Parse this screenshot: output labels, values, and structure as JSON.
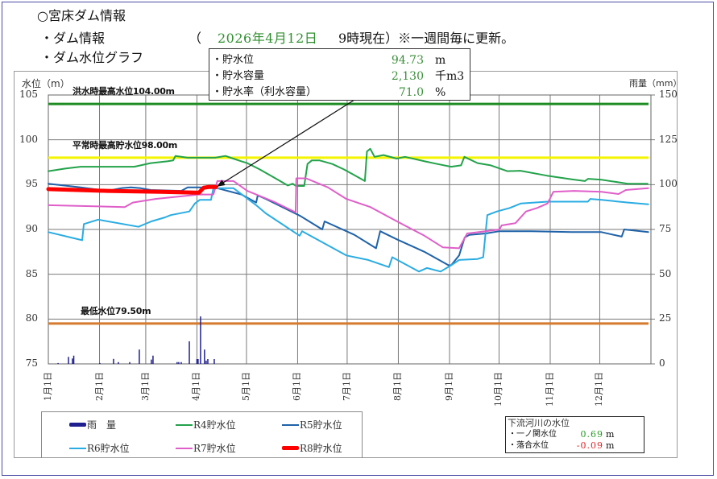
{
  "page": {
    "title": "○宮床ダム情報",
    "section_dam_info": "・ダム情報",
    "paren_open": "（",
    "date": "2026年4月12日",
    "time_note": "9時現在）※一週間毎に更新。",
    "section_graph": "・ダム水位グラフ"
  },
  "info_box": {
    "rows": [
      {
        "label": "・貯水位",
        "value": "94.73",
        "unit": "m"
      },
      {
        "label": "・貯水容量",
        "value": "2,130",
        "unit": "千m3"
      },
      {
        "label": "・貯水率（利水容量）",
        "value": "71.0",
        "unit": "%"
      }
    ]
  },
  "river": {
    "title": "下流河川の水位",
    "rows": [
      {
        "label": "・一ノ関水位",
        "value": "0.69",
        "unit": "m",
        "color": "#239a23"
      },
      {
        "label": "・落合水位",
        "value": "-0.09",
        "unit": "m",
        "color": "#e02424"
      }
    ]
  },
  "chart_data": {
    "type": "line",
    "title": "ダム水位グラフ",
    "xlabel": "",
    "ylabel": "水位（m）",
    "y2label": "雨量（mm）",
    "ylim": [
      75,
      105
    ],
    "y2lim": [
      0,
      150
    ],
    "xlim": [
      0,
      365
    ],
    "x_unit": "day_of_year (0 = 1月1日)",
    "yticks": [
      75,
      80,
      85,
      90,
      95,
      100,
      105
    ],
    "y2ticks": [
      0,
      25,
      50,
      75,
      100,
      125,
      150
    ],
    "categories": [
      "1月1日",
      "2月1日",
      "3月1日",
      "4月1日",
      "5月1日",
      "6月1日",
      "7月1日",
      "8月1日",
      "9月1日",
      "10月1日",
      "11月1日",
      "12月1日"
    ],
    "category_days": [
      0,
      31,
      59,
      90,
      120,
      151,
      181,
      212,
      243,
      273,
      304,
      334
    ],
    "grid": true,
    "legend_position": "bottom",
    "reference_lines": [
      {
        "label": "洪水時最高水位104.00m",
        "value": 104.0,
        "color": "#1d8c22"
      },
      {
        "label": "平常時最高貯水位98.00m",
        "value": 98.0,
        "color": "#f4f400"
      },
      {
        "label": "最低水位79.50m",
        "value": 79.5,
        "color": "#d57a2f"
      }
    ],
    "annotation": {
      "text": "現在の貯水位 94.73m (4月12日)",
      "points_to": [
        101.5,
        94.73
      ]
    },
    "series": [
      {
        "name": "雨　量",
        "type": "bar",
        "axis": "y2",
        "color": "#1f1f8f",
        "width": 1.5,
        "points": [
          [
            5.9,
            0.5
          ],
          [
            12.2,
            3.9
          ],
          [
            14.6,
            3.0
          ],
          [
            15.4,
            4.6
          ],
          [
            31.2,
            0.5
          ],
          [
            39.5,
            2.8
          ],
          [
            42.4,
            1.0
          ],
          [
            49.3,
            1.0
          ],
          [
            55.1,
            8.0
          ],
          [
            62.4,
            2.4
          ],
          [
            63.4,
            4.6
          ],
          [
            78,
            1.0
          ],
          [
            79,
            1.0
          ],
          [
            80.5,
            1.0
          ],
          [
            85.4,
            12.6
          ],
          [
            90,
            2.7
          ],
          [
            90.7,
            2.7
          ],
          [
            92.2,
            26.5
          ],
          [
            94.6,
            8.0
          ],
          [
            95.6,
            1.8
          ],
          [
            96.6,
            2.7
          ],
          [
            100.5,
            2.7
          ]
        ]
      },
      {
        "name": "R4貯水位",
        "type": "line",
        "axis": "y",
        "color": "#23a24b",
        "width": 2,
        "points": [
          [
            0,
            96.5
          ],
          [
            10.7,
            96.8
          ],
          [
            19.5,
            97.0
          ],
          [
            52,
            97.0
          ],
          [
            62,
            97.4
          ],
          [
            72,
            97.6
          ],
          [
            75.6,
            97.7
          ],
          [
            77,
            98.2
          ],
          [
            84.4,
            98.0
          ],
          [
            101,
            98.0
          ],
          [
            107.3,
            98.2
          ],
          [
            112,
            97.9
          ],
          [
            117,
            97.6
          ],
          [
            120.5,
            97.4
          ],
          [
            128,
            96.7
          ],
          [
            136.6,
            95.8
          ],
          [
            145,
            94.9
          ],
          [
            148,
            95.1
          ],
          [
            150,
            94.85
          ],
          [
            155,
            94.85
          ],
          [
            157,
            97.3
          ],
          [
            159.5,
            97.7
          ],
          [
            164.4,
            97.7
          ],
          [
            172,
            97.3
          ],
          [
            179,
            96.7
          ],
          [
            185,
            96.1
          ],
          [
            191.7,
            95.4
          ],
          [
            193,
            98.7
          ],
          [
            195,
            99.0
          ],
          [
            197.6,
            98.1
          ],
          [
            203,
            98.3
          ],
          [
            211,
            97.9
          ],
          [
            216,
            98.1
          ],
          [
            228,
            97.6
          ],
          [
            235.6,
            97.3
          ],
          [
            244,
            97.0
          ],
          [
            250,
            97.15
          ],
          [
            252,
            98.1
          ],
          [
            260,
            97.4
          ],
          [
            268,
            97.15
          ],
          [
            278,
            96.5
          ],
          [
            286,
            96.55
          ],
          [
            302,
            96.0
          ],
          [
            317,
            95.6
          ],
          [
            325,
            95.4
          ],
          [
            327,
            95.65
          ],
          [
            335,
            95.55
          ],
          [
            351,
            95.1
          ],
          [
            363,
            95.1
          ]
        ]
      },
      {
        "name": "R5貯水位",
        "type": "line",
        "axis": "y",
        "color": "#1f62a8",
        "width": 2,
        "points": [
          [
            0,
            95.1
          ],
          [
            19.5,
            94.7
          ],
          [
            35.6,
            94.3
          ],
          [
            44,
            94.6
          ],
          [
            50,
            94.7
          ],
          [
            56,
            94.6
          ],
          [
            62,
            94.4
          ],
          [
            80.5,
            94.3
          ],
          [
            84.4,
            94.7
          ],
          [
            91.2,
            94.7
          ],
          [
            102.4,
            94.6
          ],
          [
            117,
            93.9
          ],
          [
            125.9,
            93.0
          ],
          [
            126.8,
            93.8
          ],
          [
            131.7,
            93.4
          ],
          [
            152.7,
            91.5
          ],
          [
            165.9,
            90.0
          ],
          [
            167.3,
            90.9
          ],
          [
            185.4,
            89.4
          ],
          [
            198.5,
            87.9
          ],
          [
            201,
            89.8
          ],
          [
            211,
            88.9
          ],
          [
            227.8,
            87.5
          ],
          [
            242.4,
            86.0
          ],
          [
            244,
            86.0
          ],
          [
            248.8,
            87.1
          ],
          [
            252.2,
            89.1
          ],
          [
            255,
            89.4
          ],
          [
            264.9,
            89.55
          ],
          [
            273.2,
            89.8
          ],
          [
            292.7,
            89.8
          ],
          [
            317,
            89.7
          ],
          [
            335,
            89.7
          ],
          [
            347.3,
            89.2
          ],
          [
            348.8,
            90.0
          ],
          [
            363.4,
            89.7
          ]
        ]
      },
      {
        "name": "R6貯水位",
        "type": "line",
        "axis": "y",
        "color": "#2aace2",
        "width": 2,
        "points": [
          [
            0,
            89.7
          ],
          [
            20.5,
            88.8
          ],
          [
            21.5,
            90.6
          ],
          [
            30.2,
            91.1
          ],
          [
            54.6,
            90.3
          ],
          [
            62.4,
            90.9
          ],
          [
            70.7,
            91.35
          ],
          [
            74.1,
            91.6
          ],
          [
            85.4,
            92.0
          ],
          [
            88.8,
            92.9
          ],
          [
            91.7,
            93.3
          ],
          [
            98.5,
            93.3
          ],
          [
            100,
            94.6
          ],
          [
            112.2,
            94.6
          ],
          [
            125.9,
            92.7
          ],
          [
            131.7,
            91.8
          ],
          [
            152.2,
            89.3
          ],
          [
            153.7,
            89.8
          ],
          [
            180.5,
            87.1
          ],
          [
            193.7,
            86.6
          ],
          [
            206.3,
            85.8
          ],
          [
            208.3,
            86.9
          ],
          [
            224.4,
            85.3
          ],
          [
            229.3,
            85.7
          ],
          [
            237.6,
            85.3
          ],
          [
            244,
            86.0
          ],
          [
            248.8,
            86.6
          ],
          [
            260,
            86.7
          ],
          [
            263.4,
            86.9
          ],
          [
            265.9,
            91.6
          ],
          [
            271.7,
            92.0
          ],
          [
            279.5,
            92.4
          ],
          [
            286.3,
            92.9
          ],
          [
            302.4,
            93.1
          ],
          [
            326.8,
            93.1
          ],
          [
            328.3,
            93.4
          ],
          [
            335.1,
            93.3
          ],
          [
            351.2,
            93.0
          ],
          [
            363.4,
            92.8
          ]
        ]
      },
      {
        "name": "R7貯水位",
        "type": "line",
        "axis": "y",
        "color": "#df5fc9",
        "width": 2,
        "points": [
          [
            0,
            92.7
          ],
          [
            46.3,
            92.5
          ],
          [
            51.2,
            93.0
          ],
          [
            64.9,
            93.4
          ],
          [
            91.2,
            93.9
          ],
          [
            100,
            93.9
          ],
          [
            102.4,
            95.4
          ],
          [
            112.2,
            95.4
          ],
          [
            120.5,
            94.3
          ],
          [
            136.6,
            93.1
          ],
          [
            149.8,
            91.9
          ],
          [
            150.2,
            95.7
          ],
          [
            156.1,
            95.7
          ],
          [
            169.3,
            94.7
          ],
          [
            180.5,
            93.4
          ],
          [
            195.1,
            92.5
          ],
          [
            211.2,
            90.9
          ],
          [
            227.8,
            89.3
          ],
          [
            239,
            88.0
          ],
          [
            248.8,
            87.9
          ],
          [
            253.7,
            89.55
          ],
          [
            264.9,
            89.8
          ],
          [
            273.2,
            90.0
          ],
          [
            274.6,
            90.45
          ],
          [
            282.9,
            90.7
          ],
          [
            289.3,
            92.0
          ],
          [
            296.1,
            92.4
          ],
          [
            302.4,
            92.9
          ],
          [
            305.9,
            94.2
          ],
          [
            318.5,
            94.3
          ],
          [
            335.1,
            94.2
          ],
          [
            345.4,
            93.95
          ],
          [
            349.8,
            94.4
          ],
          [
            363.4,
            94.6
          ]
        ]
      },
      {
        "name": "R8貯水位",
        "type": "line",
        "axis": "y",
        "color": "#ff0000",
        "width": 5,
        "points": [
          [
            0,
            94.5
          ],
          [
            35.6,
            94.3
          ],
          [
            68.3,
            94.2
          ],
          [
            91.2,
            94.1
          ],
          [
            94.1,
            94.65
          ],
          [
            97.6,
            94.75
          ],
          [
            101.5,
            94.73
          ]
        ]
      }
    ]
  }
}
